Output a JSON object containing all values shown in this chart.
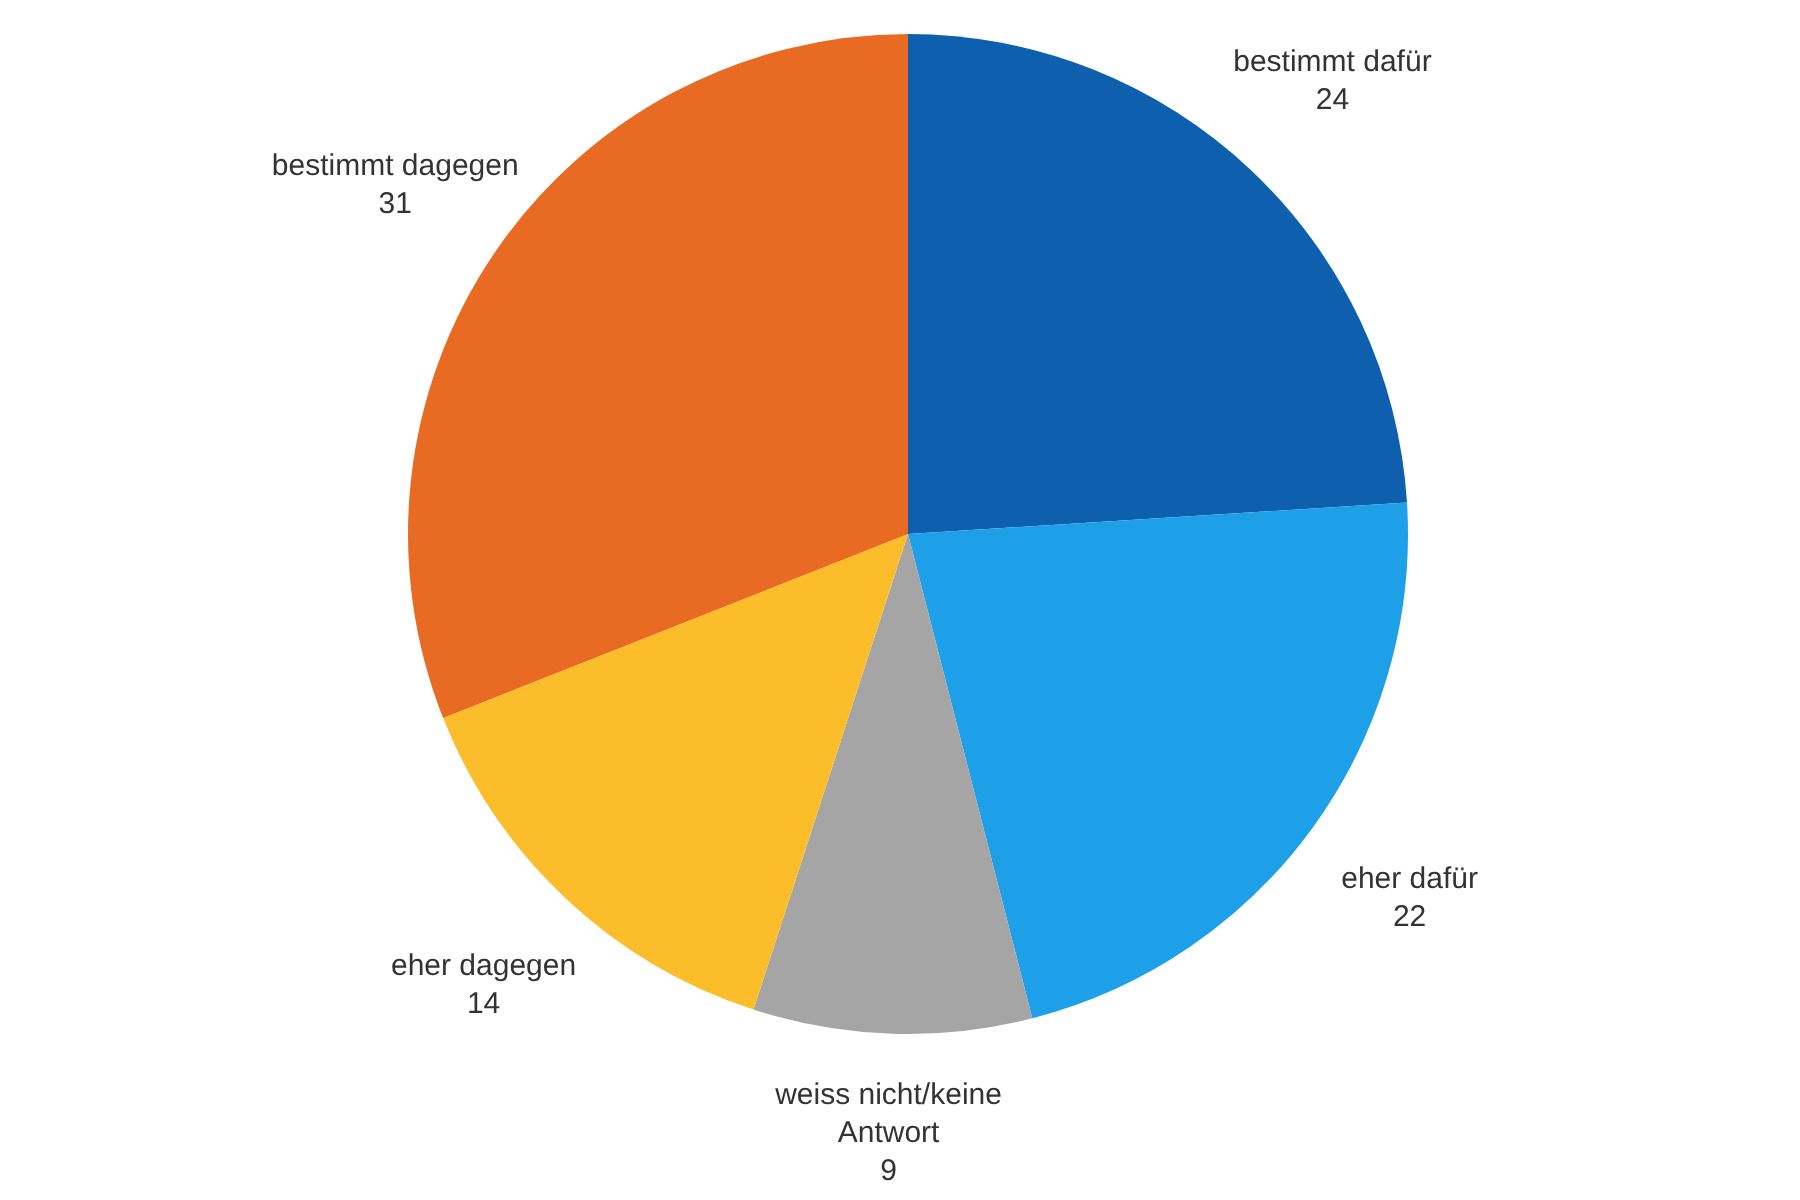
{
  "chart_data": {
    "type": "pie",
    "categories": [
      "bestimmt dafür",
      "eher dafür",
      "weiss nicht/keine Antwort",
      "eher dagegen",
      "bestimmt dagegen"
    ],
    "values": [
      24,
      22,
      9,
      14,
      31
    ],
    "colors": [
      "#0e5fad",
      "#1ea0e8",
      "#a5a5a5",
      "#fbbd2a",
      "#e86a23"
    ],
    "data_labels": true,
    "legend": false
  }
}
